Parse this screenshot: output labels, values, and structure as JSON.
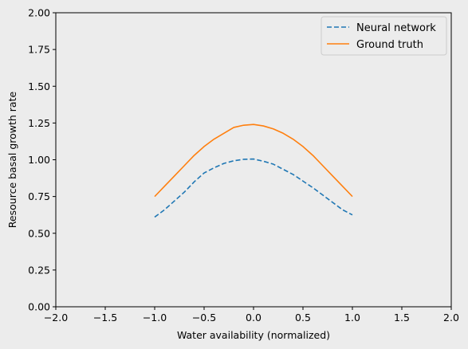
{
  "chart_data": {
    "type": "line",
    "xlabel": "Water availability (normalized)",
    "ylabel": "Resource basal growth rate",
    "xlim": [
      -2.0,
      2.0
    ],
    "ylim": [
      0.0,
      2.0
    ],
    "xticks": [
      "−2.0",
      "−1.5",
      "−1.0",
      "−0.5",
      "0.0",
      "0.5",
      "1.0",
      "1.5",
      "2.0"
    ],
    "xtick_values": [
      -2.0,
      -1.5,
      -1.0,
      -0.5,
      0.0,
      0.5,
      1.0,
      1.5,
      2.0
    ],
    "yticks": [
      "0.00",
      "0.25",
      "0.50",
      "0.75",
      "1.00",
      "1.25",
      "1.50",
      "1.75",
      "2.00"
    ],
    "ytick_values": [
      0.0,
      0.25,
      0.5,
      0.75,
      1.0,
      1.25,
      1.5,
      1.75,
      2.0
    ],
    "grid": false,
    "legend_position": "top-right",
    "series": [
      {
        "name": "Neural network",
        "style": "dashed",
        "color": "#1f77b4",
        "x": [
          -1.0,
          -0.9,
          -0.8,
          -0.7,
          -0.6,
          -0.5,
          -0.4,
          -0.3,
          -0.2,
          -0.1,
          0.0,
          0.1,
          0.2,
          0.3,
          0.4,
          0.5,
          0.6,
          0.7,
          0.8,
          0.9,
          1.0
        ],
        "y": [
          0.61,
          0.66,
          0.72,
          0.78,
          0.85,
          0.91,
          0.945,
          0.975,
          0.993,
          1.003,
          1.005,
          0.99,
          0.97,
          0.935,
          0.9,
          0.855,
          0.81,
          0.76,
          0.71,
          0.66,
          0.625
        ]
      },
      {
        "name": "Ground truth",
        "style": "solid",
        "color": "#ff7f0e",
        "x": [
          -1.0,
          -0.9,
          -0.8,
          -0.7,
          -0.6,
          -0.5,
          -0.4,
          -0.3,
          -0.2,
          -0.1,
          0.0,
          0.1,
          0.2,
          0.3,
          0.4,
          0.5,
          0.6,
          0.7,
          0.8,
          0.9,
          1.0
        ],
        "y": [
          0.75,
          0.82,
          0.89,
          0.96,
          1.03,
          1.09,
          1.14,
          1.18,
          1.22,
          1.235,
          1.24,
          1.23,
          1.21,
          1.18,
          1.14,
          1.09,
          1.03,
          0.96,
          0.89,
          0.82,
          0.75
        ]
      }
    ]
  }
}
